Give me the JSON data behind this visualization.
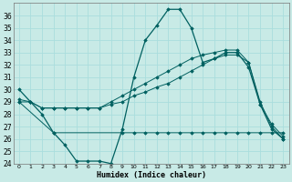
{
  "xlabel": "Humidex (Indice chaleur)",
  "background_color": "#c8eae6",
  "grid_color": "#aadddd",
  "line_color": "#006060",
  "xlim": [
    -0.5,
    23.5
  ],
  "ylim": [
    24,
    37
  ],
  "yticks": [
    24,
    25,
    26,
    27,
    28,
    29,
    30,
    31,
    32,
    33,
    34,
    35,
    36
  ],
  "xticks": [
    0,
    1,
    2,
    3,
    4,
    5,
    6,
    7,
    8,
    9,
    10,
    11,
    12,
    13,
    14,
    15,
    16,
    17,
    18,
    19,
    20,
    21,
    22,
    23
  ],
  "xtick_labels": [
    "0",
    "1",
    "2",
    "3",
    "4",
    "5",
    "6",
    "7",
    "8",
    "9",
    "10",
    "11",
    "12",
    "13",
    "14",
    "15",
    "16",
    "17",
    "18",
    "19",
    "20",
    "21",
    "22",
    "23"
  ],
  "series1": [
    30.0,
    29.0,
    28.0,
    26.5,
    25.5,
    24.2,
    24.2,
    24.2,
    24.0,
    26.8,
    31.0,
    34.0,
    35.2,
    36.5,
    36.5,
    35.0,
    32.2,
    32.5,
    33.0,
    33.0,
    31.8,
    28.8,
    26.8,
    26.0
  ],
  "series2": [
    29.0,
    29.0,
    28.5,
    28.5,
    28.5,
    28.5,
    28.5,
    28.5,
    28.8,
    29.0,
    29.5,
    29.8,
    30.2,
    30.5,
    31.0,
    31.5,
    32.0,
    32.5,
    32.8,
    32.8,
    32.2,
    28.8,
    27.2,
    26.2
  ],
  "series3_x": [
    0,
    3,
    9,
    10,
    11,
    12,
    13,
    14,
    15,
    16,
    17,
    18,
    19,
    20,
    21,
    22,
    23
  ],
  "series3_y": [
    29.0,
    26.5,
    26.5,
    26.5,
    26.5,
    26.5,
    26.5,
    26.5,
    26.5,
    26.5,
    26.5,
    26.5,
    26.5,
    26.5,
    26.5,
    26.5,
    26.5
  ],
  "series4_x": [
    0,
    1,
    2,
    3,
    4,
    5,
    6,
    7,
    8,
    9,
    10,
    11,
    12,
    13,
    14,
    15,
    16,
    17,
    18,
    19,
    20,
    21,
    22,
    23
  ],
  "series4_y": [
    29.2,
    29.0,
    28.5,
    28.5,
    28.5,
    28.5,
    28.5,
    28.5,
    29.0,
    29.5,
    30.0,
    30.5,
    31.0,
    31.5,
    32.0,
    32.5,
    32.8,
    33.0,
    33.2,
    33.2,
    32.2,
    29.0,
    27.0,
    26.0
  ]
}
